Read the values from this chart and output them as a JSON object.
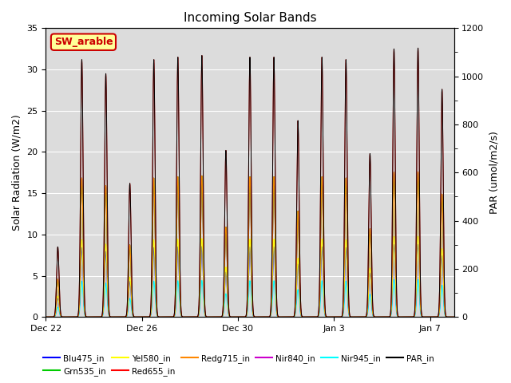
{
  "title": "Incoming Solar Bands",
  "ylabel_left": "Solar Radiation (W/m2)",
  "ylabel_right": "PAR (umol/m2/s)",
  "annotation_text": "SW_arable",
  "annotation_facecolor": "#ffff99",
  "annotation_edgecolor": "#cc0000",
  "annotation_textcolor": "#cc0000",
  "ylim_left": [
    0,
    35
  ],
  "ylim_right": [
    0,
    1200
  ],
  "yticks_left": [
    0,
    5,
    10,
    15,
    20,
    25,
    30,
    35
  ],
  "yticks_right": [
    0,
    200,
    400,
    600,
    800,
    1000,
    1200
  ],
  "background_inner": "#dcdcdc",
  "background_outer": "#ffffff",
  "grid_color": "#ffffff",
  "series": [
    {
      "name": "Blu475_in",
      "color": "#0000ff"
    },
    {
      "name": "Grn535_in",
      "color": "#00cc00"
    },
    {
      "name": "Yel580_in",
      "color": "#ffff00"
    },
    {
      "name": "Red655_in",
      "color": "#ff0000"
    },
    {
      "name": "Redg715_in",
      "color": "#ff8800"
    },
    {
      "name": "Nir840_in",
      "color": "#cc00cc"
    },
    {
      "name": "Nir945_in",
      "color": "#00ffff"
    },
    {
      "name": "PAR_in",
      "color": "#000000"
    }
  ],
  "xtick_labels": [
    "Dec 22",
    "Dec 26",
    "Dec 30",
    "Jan 3",
    "Jan 7"
  ],
  "num_days": 17,
  "day_peaks": [
    8.5,
    31.2,
    29.5,
    16.2,
    31.2,
    31.5,
    31.7,
    20.2,
    31.5,
    31.5,
    23.8,
    31.5,
    31.2,
    19.8,
    32.5,
    32.6,
    27.6
  ],
  "par_scale": 34.3,
  "band_fractions": {
    "Red655_in": 1.0,
    "Redg715_in": 0.54,
    "Nir840_in": 0.54,
    "Grn535_in": 0.54,
    "Yel580_in": 0.3,
    "Blu475_in": 0.27,
    "Nir945_in": 0.14
  },
  "peak_sigma_hours": 1.2,
  "pts_per_day": 288
}
